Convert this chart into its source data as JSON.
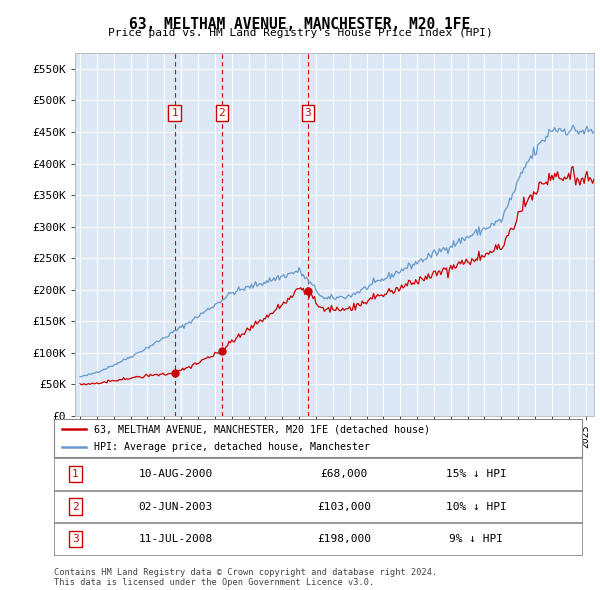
{
  "title": "63, MELTHAM AVENUE, MANCHESTER, M20 1FE",
  "subtitle": "Price paid vs. HM Land Registry's House Price Index (HPI)",
  "ylabel_ticks": [
    "£0",
    "£50K",
    "£100K",
    "£150K",
    "£200K",
    "£250K",
    "£300K",
    "£350K",
    "£400K",
    "£450K",
    "£500K",
    "£550K"
  ],
  "ylim": [
    0,
    575000
  ],
  "xlim_start": 1994.7,
  "xlim_end": 2025.5,
  "sale_dates": [
    2000.61,
    2003.42,
    2008.53
  ],
  "sale_prices": [
    68000,
    103000,
    198000
  ],
  "sale_labels": [
    "1",
    "2",
    "3"
  ],
  "legend_line1": "63, MELTHAM AVENUE, MANCHESTER, M20 1FE (detached house)",
  "legend_line2": "HPI: Average price, detached house, Manchester",
  "table_data": [
    [
      "1",
      "10-AUG-2000",
      "£68,000",
      "15% ↓ HPI"
    ],
    [
      "2",
      "02-JUN-2003",
      "£103,000",
      "10% ↓ HPI"
    ],
    [
      "3",
      "11-JUL-2008",
      "£198,000",
      "9% ↓ HPI"
    ]
  ],
  "footnote": "Contains HM Land Registry data © Crown copyright and database right 2024.\nThis data is licensed under the Open Government Licence v3.0.",
  "red_color": "#cc0000",
  "blue_color": "#6699cc",
  "background_color": "#dce8f5"
}
